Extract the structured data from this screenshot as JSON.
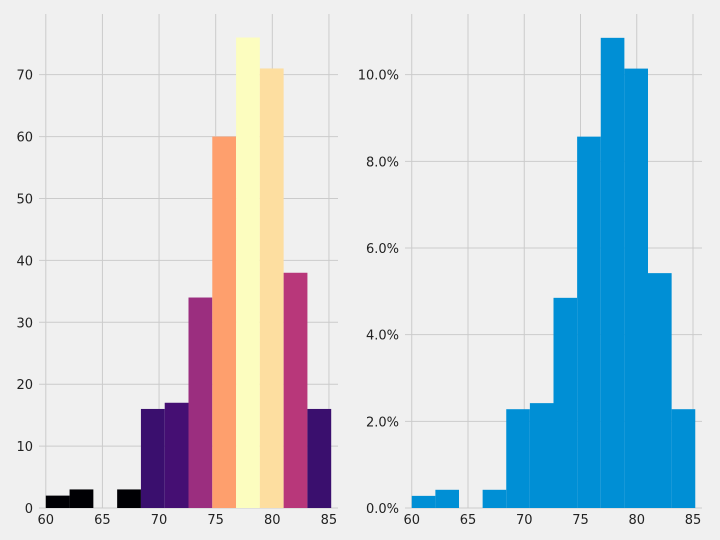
{
  "chart_data": [
    {
      "type": "bar",
      "histogram": true,
      "bin_edges": [
        60,
        62.1,
        64.2,
        66.3,
        68.4,
        70.5,
        72.6,
        74.7,
        76.8,
        78.9,
        81.0,
        83.1,
        85.2
      ],
      "values": [
        2,
        3,
        0,
        3,
        16,
        17,
        34,
        60,
        76,
        71,
        38,
        16
      ],
      "colormap": "magma (color by height)",
      "colors": [
        "#000004",
        "#000004",
        "#000004",
        "#000004",
        "#3a0f6e",
        "#450f73",
        "#9b2e7f",
        "#fe9f6d",
        "#fcfdbf",
        "#fddea0",
        "#b8377a",
        "#3a0f6e"
      ],
      "xticks": [
        "60",
        "65",
        "70",
        "75",
        "80",
        "85"
      ],
      "yticks": [
        "0",
        "10",
        "20",
        "30",
        "40",
        "50",
        "60",
        "70"
      ],
      "xlim": [
        59.4,
        85.8
      ],
      "ylim": [
        0,
        79.8
      ],
      "grid": true
    },
    {
      "type": "bar",
      "histogram": true,
      "bin_edges": [
        60,
        62.1,
        64.2,
        66.3,
        68.4,
        70.5,
        72.6,
        74.7,
        76.8,
        78.9,
        81.0,
        83.1,
        85.2
      ],
      "values": [
        0.0028,
        0.0042,
        0,
        0.0042,
        0.0228,
        0.0242,
        0.0485,
        0.0857,
        0.1085,
        0.1014,
        0.0542,
        0.0228
      ],
      "color": "#008fd5",
      "xticks": [
        "60",
        "65",
        "70",
        "75",
        "80",
        "85"
      ],
      "yticks": [
        "0.0%",
        "2.0%",
        "4.0%",
        "6.0%",
        "8.0%",
        "10.0%"
      ],
      "xlim": [
        59.4,
        85.8
      ],
      "ylim": [
        0,
        0.114
      ],
      "grid": true
    }
  ]
}
